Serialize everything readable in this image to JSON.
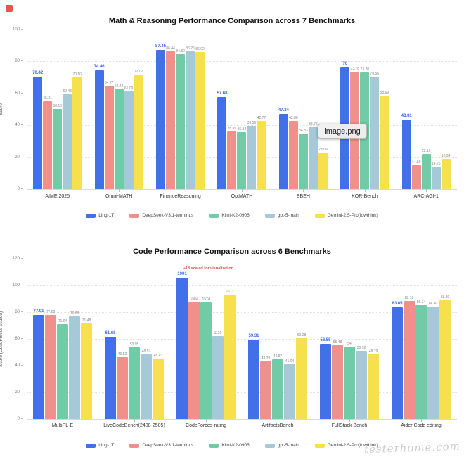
{
  "page": {
    "watermark": "testerhome.com",
    "overlay_label": "image.png"
  },
  "series_colors": {
    "Ling-1T": "#4170e8",
    "DeepSeek-V3.1-terminus": "#f0908a",
    "Kimi-K2-0905": "#70cba6",
    "gpt-5-main": "#a6c9d8",
    "Gemini-2.5-Pro(lowthink)": "#f6e04b"
  },
  "chart_data": [
    {
      "type": "bar",
      "title": "Math & Reasoning Performance Comparison across 7 Benchmarks",
      "xlabel": "",
      "ylabel": "Score",
      "ylim": [
        0,
        100
      ],
      "yticks": [
        0,
        20,
        40,
        60,
        80,
        100
      ],
      "grid": true,
      "legend_position": "bottom",
      "categories": [
        "AIME 2025",
        "Omni-MATH",
        "FinanceReasoning",
        "OptMATH",
        "BBEH",
        "KOR-Bench",
        "ARC-AGI-1"
      ],
      "series": [
        {
          "name": "Ling-1T",
          "color": "#4170e8",
          "values": [
            70.42,
            74.46,
            87.45,
            57.68,
            47.34,
            76,
            43.81
          ],
          "labels": [
            "70.42",
            "74.46",
            "87.45",
            "57.68",
            "47.34",
            "76",
            "43.81"
          ]
        },
        {
          "name": "DeepSeek-V3.1-terminus",
          "color": "#f0908a",
          "values": [
            55.21,
            64.77,
            86.44,
            35.99,
            42.86,
            73.78,
            14.89
          ],
          "labels": [
            "55.21",
            "64.77",
            "86.44",
            "35.99",
            "42.86",
            "73.78",
            "14.89"
          ]
        },
        {
          "name": "Kimi-K2-0905",
          "color": "#70cba6",
          "values": [
            50.16,
            62.42,
            84.8,
            35.84,
            34.83,
            73.2,
            22.19
          ],
          "labels": [
            "50.16",
            "62.42",
            "84.80",
            "35.84",
            "34.83",
            "73.20",
            "22.19"
          ]
        },
        {
          "name": "gpt-5-main",
          "color": "#a6c9d8",
          "values": [
            59.43,
            61.09,
            86.26,
            39.56,
            38.75,
            70.56,
            14.26
          ],
          "labels": [
            "59.43",
            "61.09",
            "86.26",
            "39.56",
            "38.75",
            "70.56",
            "14.26"
          ]
        },
        {
          "name": "Gemini-2.5-Pro(lowthink)",
          "color": "#f6e04b",
          "values": [
            70.1,
            72.02,
            86.02,
            42.77,
            23.09,
            58.69,
            18.94
          ],
          "labels": [
            "70.10",
            "72.02",
            "86.02",
            "42.77",
            "23.09",
            "58.69",
            "18.94"
          ]
        }
      ]
    },
    {
      "type": "bar",
      "title": "Code Performance Comparison across 6 Benchmarks",
      "xlabel": "",
      "ylabel": "Score (CodeForces scaled)",
      "ylim": [
        0,
        120
      ],
      "yticks": [
        0,
        20,
        40,
        60,
        80,
        100,
        120
      ],
      "grid": true,
      "legend_position": "bottom",
      "categories": [
        "MultiPL-E",
        "LiveCodeBench(2408-2505)",
        "CodeForces-rating",
        "ArtifactsBench",
        "FullStack Bench",
        "Aider Code editing"
      ],
      "scaled_category": {
        "index": 2,
        "divisor": 18
      },
      "annotation": {
        "text": "÷18 scaled for visualization",
        "color": "#d9534f",
        "category_index": 2
      },
      "series": [
        {
          "name": "Ling-1T",
          "color": "#4170e8",
          "values": [
            77.91,
            61.68,
            1901,
            59.31,
            56.55,
            83.65
          ],
          "labels": [
            "77.91",
            "61.68",
            "1901",
            "59.31",
            "56.55",
            "83.65"
          ]
        },
        {
          "name": "DeepSeek-V3.1-terminus",
          "color": "#f0908a",
          "values": [
            77.68,
            46.52,
            1582,
            43.29,
            55.48,
            88.18
          ],
          "labels": [
            "77.68",
            "46.52",
            "1582",
            "43.29",
            "55.48",
            "88.18"
          ]
        },
        {
          "name": "Kimi-K2-0905",
          "color": "#70cba6",
          "values": [
            71.04,
            53.95,
            1574,
            44.87,
            54,
            85.34
          ],
          "labels": [
            "71.04",
            "53.95",
            "1574",
            "44.87",
            "54",
            "85.34"
          ]
        },
        {
          "name": "gpt-5-main",
          "color": "#a6c9d8",
          "values": [
            76.88,
            48.57,
            1120,
            41.04,
            50.92,
            84.4
          ],
          "labels": [
            "76.88",
            "48.57",
            "1120",
            "41.04",
            "50.92",
            "84.40"
          ]
        },
        {
          "name": "Gemini-2.5-Pro(lowthink)",
          "color": "#f6e04b",
          "values": [
            71.48,
            45.43,
            1673,
            60.28,
            48.19,
            88.8
          ],
          "labels": [
            "71.48",
            "45.43",
            "1673",
            "60.28",
            "48.19",
            "88.80"
          ]
        }
      ]
    }
  ]
}
